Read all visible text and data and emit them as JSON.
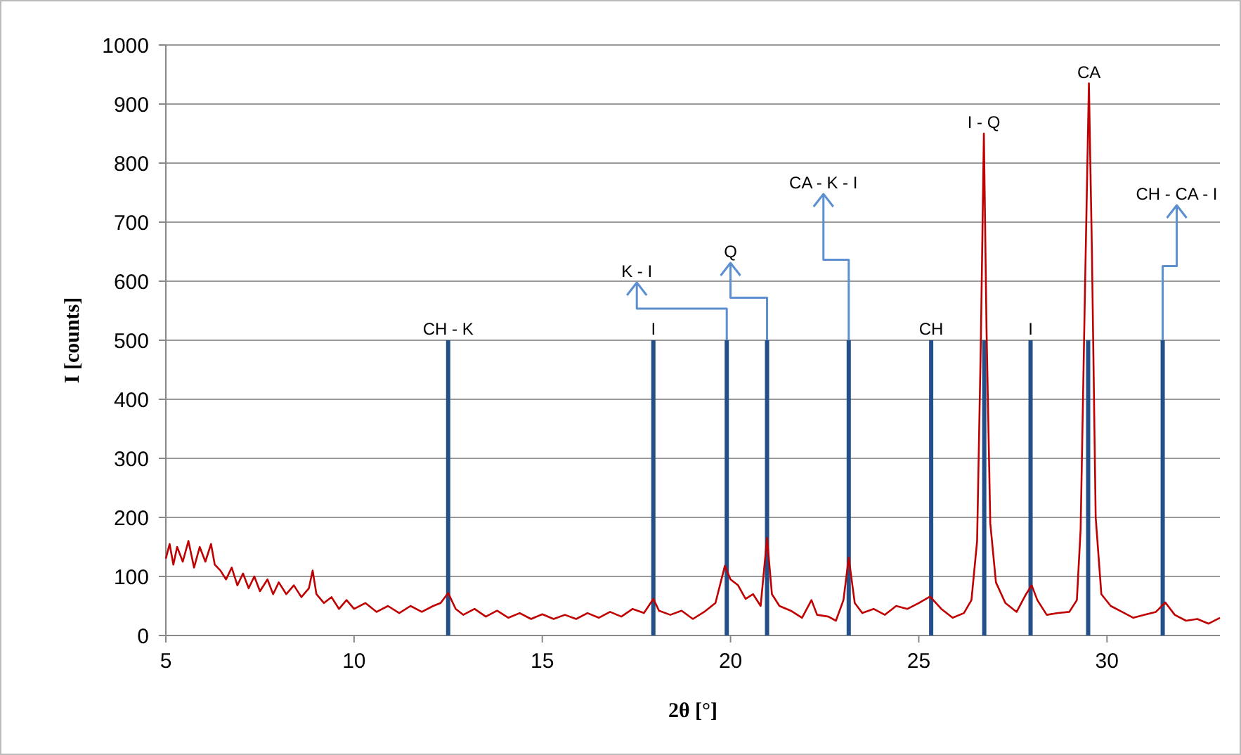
{
  "chart_data": {
    "type": "line",
    "xlabel": "2θ [°]",
    "ylabel": "I [counts]",
    "xlim": [
      5,
      33
    ],
    "xticks": [
      5,
      10,
      15,
      20,
      25,
      30
    ],
    "ylim": [
      0,
      1000
    ],
    "yticks": [
      0,
      100,
      200,
      300,
      400,
      500,
      600,
      700,
      800,
      900,
      1000
    ],
    "grid": "y",
    "marker": "none",
    "line_style": "solid",
    "series": [
      {
        "color": "#c00000",
        "x": [
          5.0,
          5.1,
          5.2,
          5.3,
          5.45,
          5.6,
          5.75,
          5.9,
          6.05,
          6.2,
          6.3,
          6.45,
          6.6,
          6.75,
          6.9,
          7.05,
          7.2,
          7.35,
          7.5,
          7.7,
          7.85,
          8.0,
          8.2,
          8.4,
          8.6,
          8.8,
          8.9,
          9.0,
          9.2,
          9.4,
          9.6,
          9.8,
          10.0,
          10.3,
          10.6,
          10.9,
          11.2,
          11.5,
          11.8,
          12.1,
          12.3,
          12.5,
          12.7,
          12.9,
          13.2,
          13.5,
          13.8,
          14.1,
          14.4,
          14.7,
          15.0,
          15.3,
          15.6,
          15.9,
          16.2,
          16.5,
          16.8,
          17.1,
          17.4,
          17.7,
          17.95,
          18.1,
          18.4,
          18.7,
          19.0,
          19.3,
          19.6,
          19.85,
          20.0,
          20.2,
          20.4,
          20.6,
          20.8,
          20.97,
          21.1,
          21.3,
          21.6,
          21.9,
          22.15,
          22.3,
          22.6,
          22.8,
          23.0,
          23.14,
          23.3,
          23.5,
          23.8,
          24.1,
          24.4,
          24.7,
          25.0,
          25.3,
          25.6,
          25.9,
          26.2,
          26.4,
          26.55,
          26.65,
          26.73,
          26.8,
          26.9,
          27.05,
          27.3,
          27.6,
          27.85,
          28.0,
          28.15,
          28.4,
          28.7,
          29.0,
          29.2,
          29.3,
          29.42,
          29.52,
          29.6,
          29.7,
          29.85,
          30.1,
          30.4,
          30.7,
          31.0,
          31.3,
          31.55,
          31.8,
          32.1,
          32.4,
          32.7,
          33.0
        ],
        "values": [
          130,
          155,
          120,
          150,
          125,
          160,
          115,
          150,
          125,
          155,
          120,
          110,
          95,
          115,
          85,
          105,
          80,
          100,
          75,
          95,
          70,
          90,
          70,
          85,
          65,
          80,
          110,
          70,
          55,
          65,
          45,
          60,
          45,
          55,
          40,
          50,
          38,
          50,
          40,
          50,
          55,
          72,
          45,
          35,
          45,
          32,
          42,
          30,
          38,
          28,
          36,
          28,
          35,
          28,
          38,
          30,
          40,
          32,
          45,
          38,
          62,
          42,
          35,
          42,
          28,
          40,
          55,
          118,
          95,
          85,
          62,
          70,
          50,
          165,
          70,
          50,
          42,
          30,
          60,
          35,
          32,
          25,
          60,
          132,
          55,
          38,
          45,
          35,
          50,
          45,
          55,
          66,
          45,
          30,
          38,
          60,
          160,
          500,
          850,
          520,
          190,
          90,
          55,
          40,
          70,
          85,
          60,
          35,
          38,
          40,
          60,
          180,
          600,
          935,
          650,
          200,
          70,
          50,
          40,
          30,
          35,
          40,
          56,
          35,
          25,
          28,
          20,
          30
        ]
      },
      {
        "type": "bar",
        "color": "#24508a",
        "x": [
          12.5,
          17.95,
          19.9,
          20.97,
          23.14,
          25.33,
          26.74,
          27.97,
          29.5,
          31.48
        ],
        "values": [
          500,
          500,
          500,
          500,
          500,
          500,
          500,
          500,
          500,
          500
        ]
      }
    ],
    "annotations": [
      {
        "text": "CH - K",
        "x": 12.5,
        "y": 500
      },
      {
        "text": "I",
        "x": 17.95,
        "y": 500
      },
      {
        "text": "K - I",
        "x": 19.9,
        "y": 500
      },
      {
        "text": "Q",
        "x": 20.97,
        "y": 500
      },
      {
        "text": "CA - K - I",
        "x": 23.14,
        "y": 500
      },
      {
        "text": "CH",
        "x": 25.33,
        "y": 500
      },
      {
        "text": "I - Q",
        "x": 26.73,
        "y": 850
      },
      {
        "text": "I",
        "x": 27.97,
        "y": 500
      },
      {
        "text": "CA",
        "x": 29.52,
        "y": 935
      },
      {
        "text": "CH - CA - I",
        "x": 31.48,
        "y": 500
      }
    ]
  }
}
